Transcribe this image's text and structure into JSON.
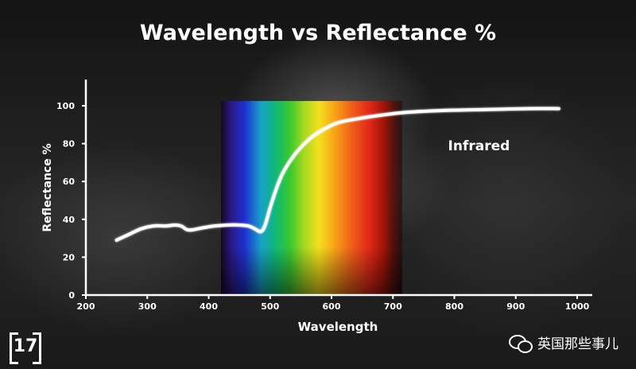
{
  "chart_data": {
    "type": "line",
    "title": "Wavelength vs Reflectance %",
    "xlabel": "Wavelength",
    "ylabel": "Reflectance %",
    "xlim": [
      200,
      1000
    ],
    "ylim": [
      0,
      100
    ],
    "x_ticks": [
      200,
      300,
      400,
      500,
      600,
      700,
      800,
      900,
      1000
    ],
    "y_ticks": [
      0,
      20,
      40,
      60,
      80,
      100
    ],
    "grid": false,
    "visible_spectrum_band": [
      420,
      715
    ],
    "annotations": [
      {
        "text": "Infrared",
        "x": 840,
        "y": 79
      }
    ],
    "series": [
      {
        "color": "#ffffff",
        "points": [
          [
            250,
            29
          ],
          [
            270,
            32
          ],
          [
            290,
            35
          ],
          [
            310,
            36.5
          ],
          [
            330,
            36.5
          ],
          [
            345,
            37
          ],
          [
            355,
            36.5
          ],
          [
            365,
            34.5
          ],
          [
            375,
            34.5
          ],
          [
            390,
            35.5
          ],
          [
            410,
            36.5
          ],
          [
            430,
            37
          ],
          [
            450,
            37
          ],
          [
            465,
            36.5
          ],
          [
            475,
            35
          ],
          [
            485,
            33.5
          ],
          [
            492,
            37
          ],
          [
            500,
            46
          ],
          [
            510,
            56
          ],
          [
            520,
            64
          ],
          [
            535,
            72
          ],
          [
            550,
            78
          ],
          [
            570,
            84
          ],
          [
            590,
            88
          ],
          [
            610,
            91
          ],
          [
            640,
            93
          ],
          [
            680,
            95
          ],
          [
            720,
            96.5
          ],
          [
            780,
            97.5
          ],
          [
            850,
            98
          ],
          [
            920,
            98.5
          ],
          [
            970,
            98.5
          ]
        ]
      }
    ]
  },
  "watermark": {
    "logo_text": "17",
    "account_name": "英国那些事儿",
    "icon": "wechat-icon"
  }
}
